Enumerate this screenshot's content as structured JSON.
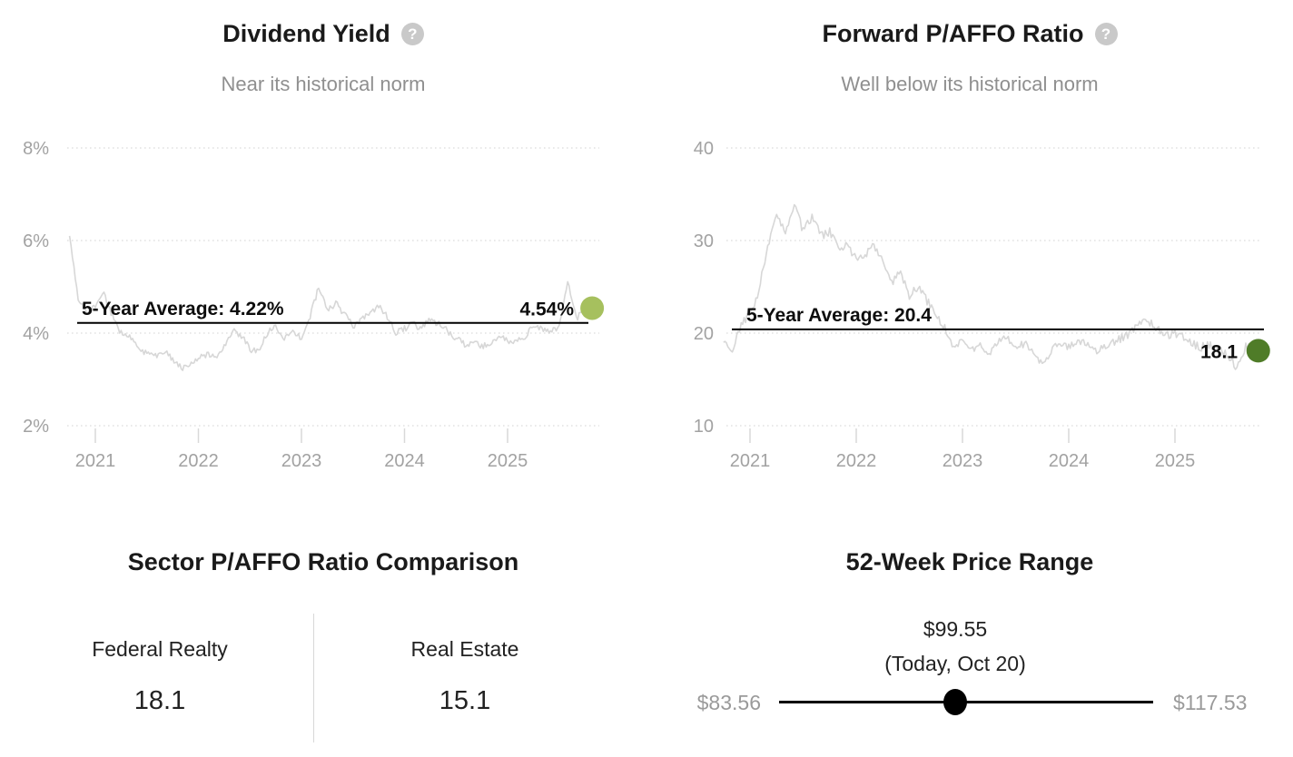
{
  "colors": {
    "dividend_dot": "#a6c05e",
    "paffo_dot": "#4f7c28",
    "series_line": "#d7d7d7",
    "grid": "#dcdcdc",
    "average_line": "#000000",
    "axis_text": "#a2a2a2",
    "muted_text": "#8f8f8f",
    "range_dot": "#000000"
  },
  "chart_data": [
    {
      "id": "dividend-yield",
      "type": "line",
      "title": "Dividend Yield",
      "help_icon": "?",
      "subtitle": "Near its historical norm",
      "y_axis": {
        "ticks": [
          {
            "value": 8,
            "label": "8%"
          },
          {
            "value": 6,
            "label": "6%"
          },
          {
            "value": 4,
            "label": "4%"
          },
          {
            "value": 2,
            "label": "2%"
          }
        ],
        "range": [
          2,
          8
        ],
        "grid": "dotted"
      },
      "x_axis": {
        "ticks": [
          {
            "year": 2021,
            "label": "2021"
          },
          {
            "year": 2022,
            "label": "2022"
          },
          {
            "year": 2023,
            "label": "2023"
          },
          {
            "year": 2024,
            "label": "2024"
          },
          {
            "year": 2025,
            "label": "2025"
          }
        ]
      },
      "series": [
        {
          "name": "Dividend Yield %",
          "start": "2020-10",
          "interval": "monthly",
          "values": [
            6.1,
            4.7,
            4.45,
            4.55,
            4.85,
            4.35,
            4.0,
            3.9,
            3.7,
            3.55,
            3.5,
            3.6,
            3.45,
            3.25,
            3.3,
            3.45,
            3.55,
            3.5,
            3.7,
            4.05,
            3.95,
            3.65,
            3.6,
            4.0,
            4.15,
            3.9,
            4.0,
            3.9,
            4.35,
            5.0,
            4.5,
            4.65,
            4.4,
            4.15,
            4.3,
            4.45,
            4.6,
            4.35,
            4.0,
            4.1,
            4.2,
            4.1,
            4.3,
            4.2,
            4.05,
            3.9,
            3.75,
            3.8,
            3.7,
            3.8,
            3.9,
            3.85,
            3.8,
            3.9,
            4.2,
            4.1,
            4.05,
            4.1,
            5.1,
            4.3,
            4.54
          ]
        }
      ],
      "average": {
        "value": 4.22,
        "label": "5-Year Average: 4.22%"
      },
      "current": {
        "value": 4.54,
        "label": "4.54%",
        "dot_color": "#a6c05e"
      },
      "line_color": "#d7d7d7"
    },
    {
      "id": "forward-paffo-ratio",
      "type": "line",
      "title": "Forward P/AFFO Ratio",
      "help_icon": "?",
      "subtitle": "Well below its historical norm",
      "y_axis": {
        "ticks": [
          {
            "value": 40,
            "label": "40"
          },
          {
            "value": 30,
            "label": "30"
          },
          {
            "value": 20,
            "label": "20"
          },
          {
            "value": 10,
            "label": "10"
          }
        ],
        "range": [
          10,
          40
        ],
        "grid": "dotted"
      },
      "x_axis": {
        "ticks": [
          {
            "year": 2021,
            "label": "2021"
          },
          {
            "year": 2022,
            "label": "2022"
          },
          {
            "year": 2023,
            "label": "2023"
          },
          {
            "year": 2024,
            "label": "2024"
          },
          {
            "year": 2025,
            "label": "2025"
          }
        ]
      },
      "series": [
        {
          "name": "Forward P/AFFO",
          "start": "2020-10",
          "interval": "monthly",
          "values": [
            19.0,
            17.8,
            21.0,
            22.0,
            24.5,
            29.5,
            32.5,
            31.0,
            34.0,
            31.0,
            32.5,
            30.5,
            31.0,
            29.0,
            29.5,
            28.0,
            28.5,
            29.5,
            28.0,
            25.5,
            26.5,
            24.0,
            25.0,
            23.5,
            22.0,
            20.5,
            18.5,
            19.5,
            18.0,
            18.5,
            17.8,
            19.0,
            19.5,
            18.5,
            18.8,
            18.0,
            16.8,
            18.0,
            19.0,
            18.5,
            19.0,
            18.8,
            18.0,
            18.5,
            19.0,
            19.5,
            20.0,
            21.0,
            21.3,
            20.5,
            19.8,
            20.0,
            19.5,
            18.8,
            18.5,
            18.8,
            18.2,
            17.5,
            16.3,
            18.6,
            18.1
          ]
        }
      ],
      "average": {
        "value": 20.4,
        "label": "5-Year Average: 20.4"
      },
      "current": {
        "value": 18.1,
        "label": "18.1",
        "dot_color": "#4f7c28"
      },
      "line_color": "#d7d7d7"
    },
    {
      "id": "sector-comparison",
      "type": "table",
      "title": "Sector P/AFFO Ratio Comparison",
      "columns": [
        "Federal Realty",
        "Real Estate"
      ],
      "values": [
        "18.1",
        "15.1"
      ]
    },
    {
      "id": "price-range",
      "type": "range",
      "title": "52-Week Price Range",
      "low": {
        "value": 83.56,
        "label": "$83.56"
      },
      "high": {
        "value": 117.53,
        "label": "$117.53"
      },
      "current": {
        "value": 99.55,
        "label": "$99.55",
        "sub_label": "(Today, Oct 20)"
      }
    }
  ]
}
